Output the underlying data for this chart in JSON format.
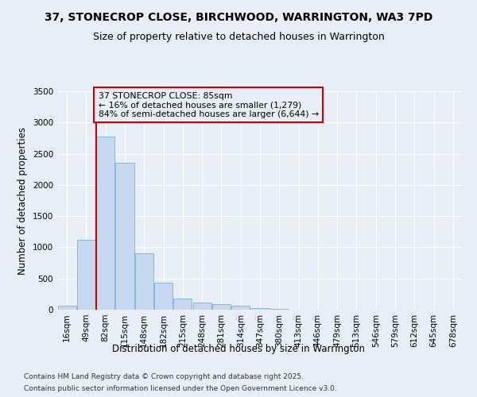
{
  "title1": "37, STONECROP CLOSE, BIRCHWOOD, WARRINGTON, WA3 7PD",
  "title2": "Size of property relative to detached houses in Warrington",
  "xlabel": "Distribution of detached houses by size in Warrington",
  "ylabel": "Number of detached properties",
  "categories": [
    "16sqm",
    "49sqm",
    "82sqm",
    "115sqm",
    "148sqm",
    "182sqm",
    "215sqm",
    "248sqm",
    "281sqm",
    "314sqm",
    "347sqm",
    "380sqm",
    "413sqm",
    "446sqm",
    "479sqm",
    "513sqm",
    "546sqm",
    "579sqm",
    "612sqm",
    "645sqm",
    "678sqm"
  ],
  "values": [
    60,
    1120,
    2780,
    2350,
    900,
    435,
    175,
    110,
    90,
    60,
    30,
    10,
    5,
    2,
    1,
    0,
    0,
    0,
    0,
    0,
    0
  ],
  "bar_color": "#c5d8f0",
  "bar_edge_color": "#7bafd4",
  "vline_color": "#cc0000",
  "annotation_text": "37 STONECROP CLOSE: 85sqm\n← 16% of detached houses are smaller (1,279)\n84% of semi-detached houses are larger (6,644) →",
  "annotation_box_color": "#cc0000",
  "ylim": [
    0,
    3500
  ],
  "yticks": [
    0,
    500,
    1000,
    1500,
    2000,
    2500,
    3000,
    3500
  ],
  "background_color": "#e8eef8",
  "grid_color": "#ffffff",
  "footer1": "Contains HM Land Registry data © Crown copyright and database right 2025.",
  "footer2": "Contains public sector information licensed under the Open Government Licence v3.0.",
  "title_fontsize": 10,
  "subtitle_fontsize": 9,
  "axis_label_fontsize": 8.5,
  "tick_fontsize": 7.5,
  "footer_fontsize": 6.5
}
